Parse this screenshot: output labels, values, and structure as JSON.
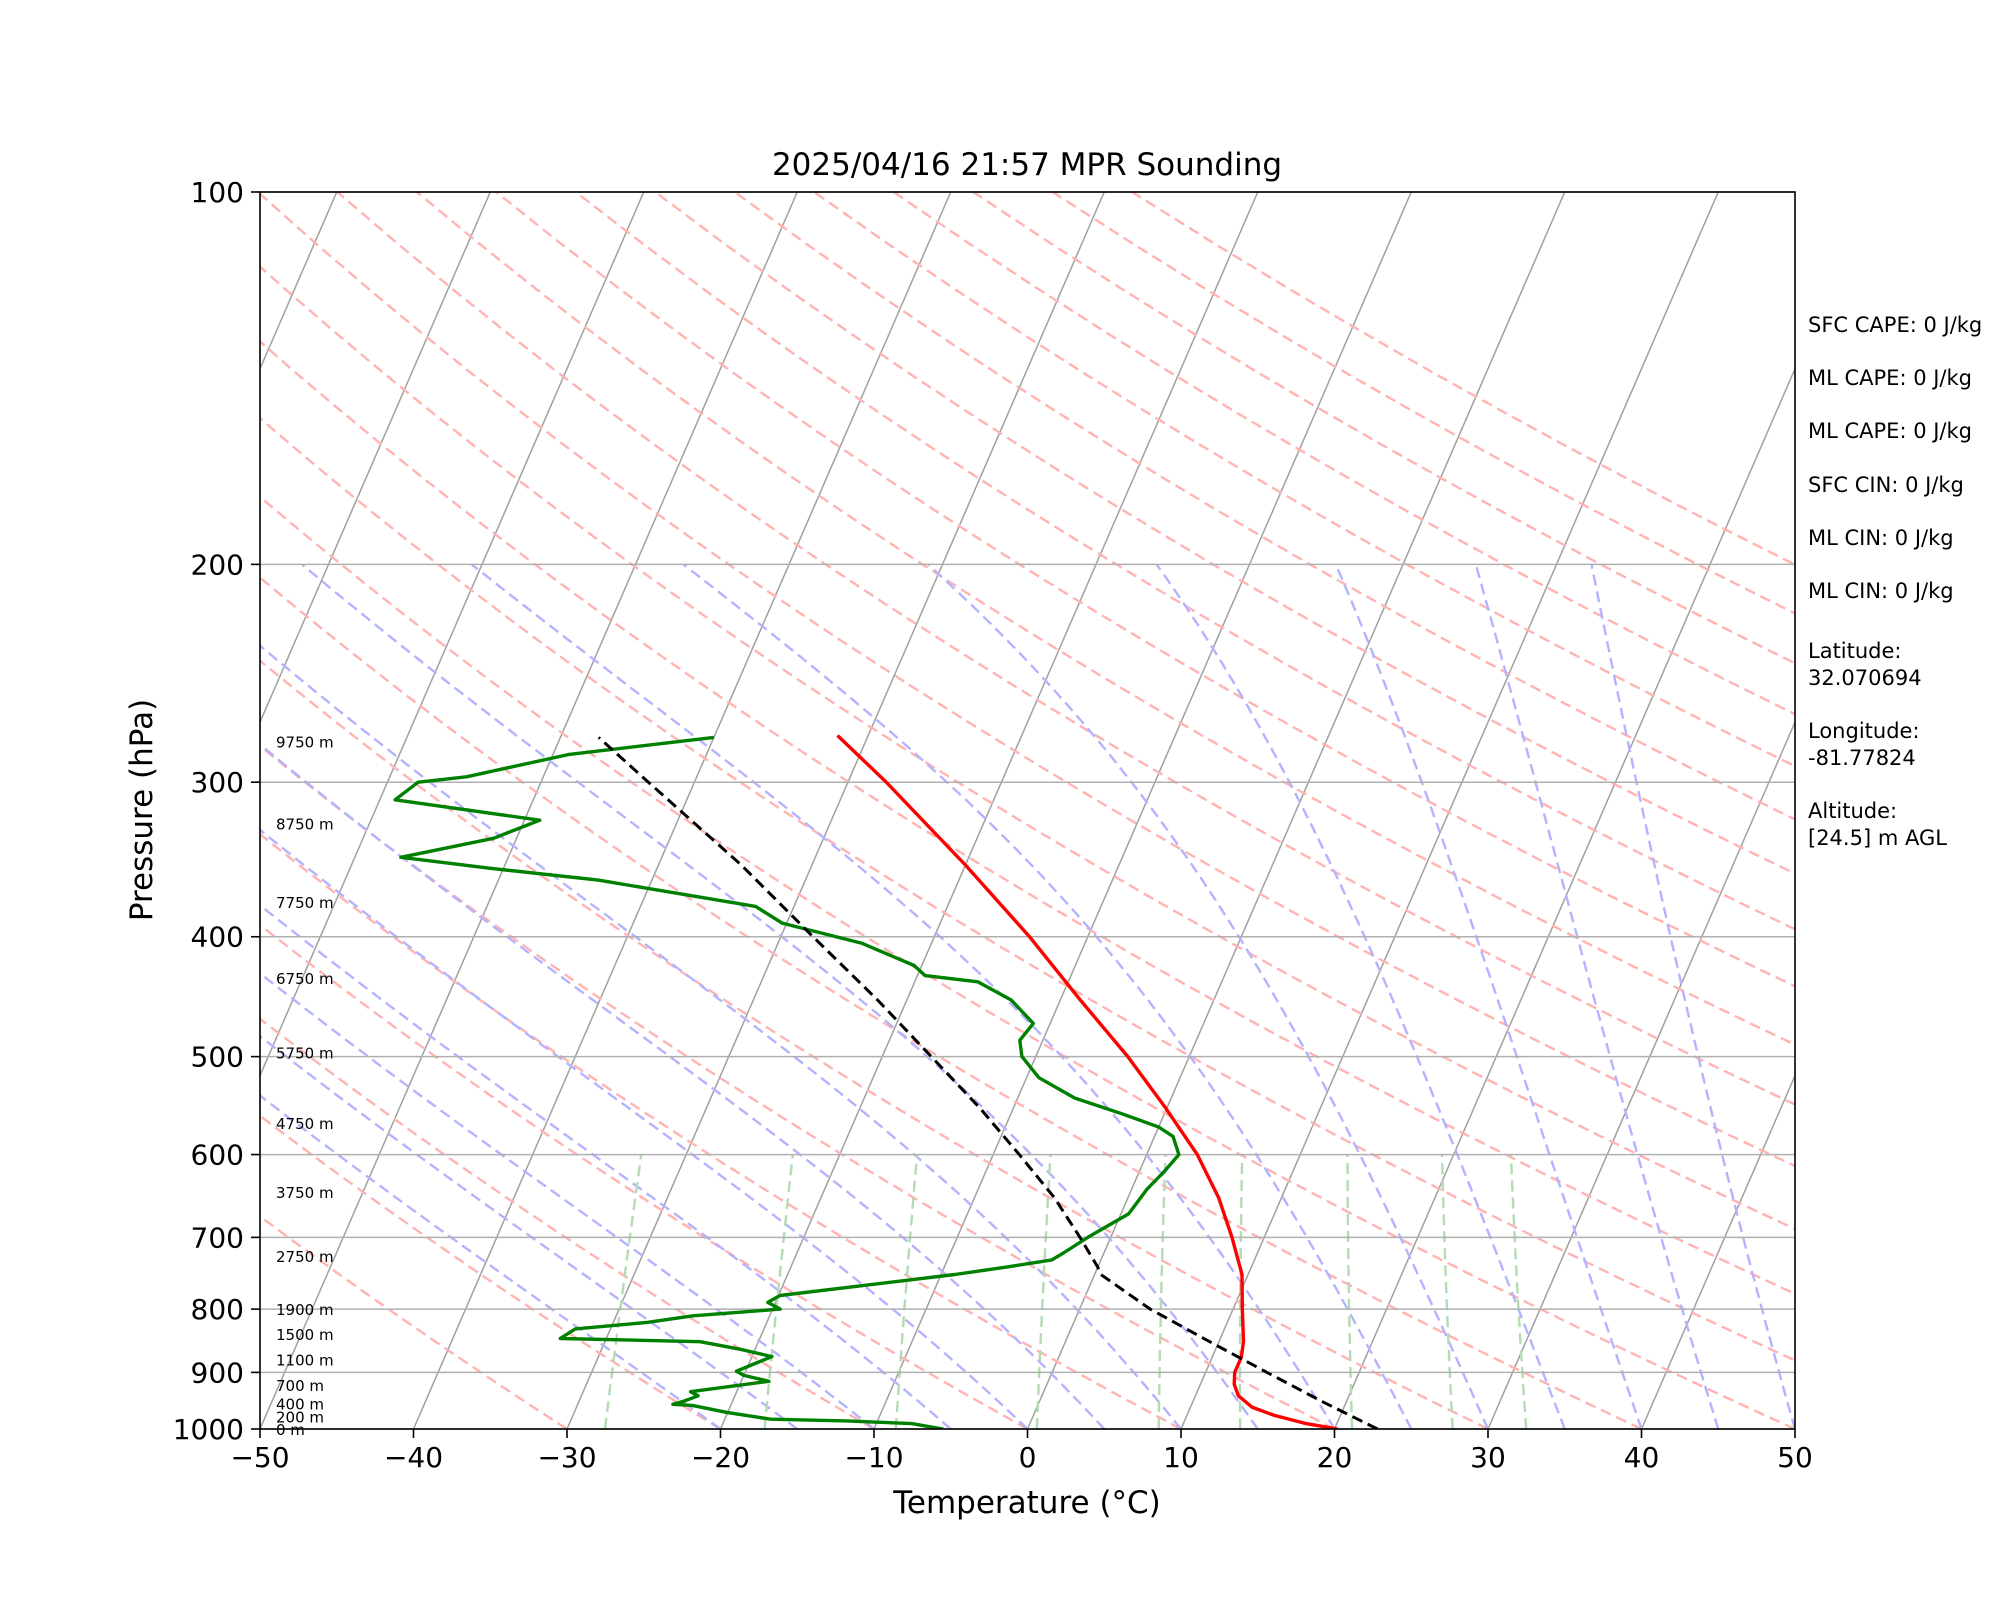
{
  "chart_data": {
    "type": "line",
    "subtype": "skew-t log-p sounding",
    "title": "2025/04/16 21:57 MPR Sounding",
    "xlabel": "Temperature (°C)",
    "ylabel": "Pressure (hPa)",
    "xlim": [
      -50,
      50
    ],
    "ylim": [
      1000,
      100
    ],
    "y_scale": "log",
    "x_ticks": [
      "−50",
      "−40",
      "−30",
      "−20",
      "−10",
      "0",
      "10",
      "20",
      "30",
      "40",
      "50"
    ],
    "y_ticks": [
      "100",
      "200",
      "300",
      "400",
      "500",
      "600",
      "700",
      "800",
      "900",
      "1000"
    ],
    "horizontal_grid": true,
    "series": [
      {
        "name": "",
        "kind": "temperature",
        "color": "#ff0000",
        "points": [
          {
            "p": 1000,
            "t": 20.2
          },
          {
            "p": 990,
            "t": 18.0
          },
          {
            "p": 975,
            "t": 15.7
          },
          {
            "p": 960,
            "t": 14.0
          },
          {
            "p": 940,
            "t": 12.8
          },
          {
            "p": 920,
            "t": 12.2
          },
          {
            "p": 900,
            "t": 11.9
          },
          {
            "p": 875,
            "t": 11.9
          },
          {
            "p": 850,
            "t": 11.6
          },
          {
            "p": 800,
            "t": 10.6
          },
          {
            "p": 750,
            "t": 9.6
          },
          {
            "p": 700,
            "t": 7.9
          },
          {
            "p": 650,
            "t": 5.9
          },
          {
            "p": 600,
            "t": 3.3
          },
          {
            "p": 550,
            "t": -0.1
          },
          {
            "p": 500,
            "t": -4.0
          },
          {
            "p": 450,
            "t": -8.7
          },
          {
            "p": 400,
            "t": -13.8
          },
          {
            "p": 350,
            "t": -20.0
          },
          {
            "p": 300,
            "t": -27.5
          },
          {
            "p": 275,
            "t": -32.0
          }
        ]
      },
      {
        "name": "",
        "kind": "dewpoint",
        "color": "#008000",
        "points": [
          {
            "p": 1000,
            "t": -5.5
          },
          {
            "p": 990,
            "t": -7.7
          },
          {
            "p": 985,
            "t": -12.0
          },
          {
            "p": 982,
            "t": -17.0
          },
          {
            "p": 970,
            "t": -20.0
          },
          {
            "p": 957,
            "t": -22.5
          },
          {
            "p": 955,
            "t": -23.8
          },
          {
            "p": 950,
            "t": -23.2
          },
          {
            "p": 940,
            "t": -22.4
          },
          {
            "p": 933,
            "t": -23.0
          },
          {
            "p": 915,
            "t": -18.2
          },
          {
            "p": 905,
            "t": -20.0
          },
          {
            "p": 898,
            "t": -20.6
          },
          {
            "p": 874,
            "t": -18.7
          },
          {
            "p": 862,
            "t": -21.0
          },
          {
            "p": 850,
            "t": -23.8
          },
          {
            "p": 845,
            "t": -33.0
          },
          {
            "p": 830,
            "t": -32.3
          },
          {
            "p": 820,
            "t": -27.8
          },
          {
            "p": 810,
            "t": -25.0
          },
          {
            "p": 800,
            "t": -19.5
          },
          {
            "p": 790,
            "t": -20.5
          },
          {
            "p": 780,
            "t": -19.9
          },
          {
            "p": 750,
            "t": -9.1
          },
          {
            "p": 740,
            "t": -6.0
          },
          {
            "p": 730,
            "t": -3.2
          },
          {
            "p": 720,
            "t": -2.6
          },
          {
            "p": 700,
            "t": -1.5
          },
          {
            "p": 670,
            "t": 0.5
          },
          {
            "p": 640,
            "t": 1.0
          },
          {
            "p": 620,
            "t": 1.6
          },
          {
            "p": 600,
            "t": 2.1
          },
          {
            "p": 580,
            "t": 1.2
          },
          {
            "p": 570,
            "t": 0.0
          },
          {
            "p": 555,
            "t": -3.0
          },
          {
            "p": 540,
            "t": -6.3
          },
          {
            "p": 520,
            "t": -9.2
          },
          {
            "p": 500,
            "t": -10.9
          },
          {
            "p": 485,
            "t": -11.5
          },
          {
            "p": 470,
            "t": -11.1
          },
          {
            "p": 450,
            "t": -13.2
          },
          {
            "p": 435,
            "t": -15.9
          },
          {
            "p": 430,
            "t": -19.5
          },
          {
            "p": 422,
            "t": -20.5
          },
          {
            "p": 405,
            "t": -24.5
          },
          {
            "p": 390,
            "t": -30.3
          },
          {
            "p": 378,
            "t": -32.5
          },
          {
            "p": 360,
            "t": -43.5
          },
          {
            "p": 352,
            "t": -51.0
          },
          {
            "p": 345,
            "t": -57.0
          },
          {
            "p": 333,
            "t": -51.5
          },
          {
            "p": 322,
            "t": -49.0
          },
          {
            "p": 310,
            "t": -59.0
          },
          {
            "p": 300,
            "t": -58.0
          },
          {
            "p": 297,
            "t": -55.0
          },
          {
            "p": 285,
            "t": -49.0
          },
          {
            "p": 276,
            "t": -40.0
          }
        ]
      },
      {
        "name": "",
        "kind": "parcel path",
        "color": "#000000",
        "dashed": true,
        "points": [
          {
            "p": 1000,
            "t": 22.8
          },
          {
            "p": 950,
            "t": 18.4
          },
          {
            "p": 900,
            "t": 14.0
          },
          {
            "p": 850,
            "t": 9.4
          },
          {
            "p": 800,
            "t": 4.6
          },
          {
            "p": 750,
            "t": 0.4
          },
          {
            "p": 740,
            "t": 0.0
          },
          {
            "p": 700,
            "t": -2.0
          },
          {
            "p": 650,
            "t": -4.8
          },
          {
            "p": 600,
            "t": -8.3
          },
          {
            "p": 550,
            "t": -12.2
          },
          {
            "p": 500,
            "t": -16.8
          },
          {
            "p": 450,
            "t": -21.9
          },
          {
            "p": 400,
            "t": -27.9
          },
          {
            "p": 350,
            "t": -34.6
          },
          {
            "p": 300,
            "t": -43.0
          },
          {
            "p": 276,
            "t": -47.5
          }
        ]
      }
    ],
    "height_labels": [
      {
        "label": "0 m",
        "p": 1000
      },
      {
        "label": "200 m",
        "p": 977
      },
      {
        "label": "400 m",
        "p": 954
      },
      {
        "label": "700 m",
        "p": 921
      },
      {
        "label": "1100 m",
        "p": 879
      },
      {
        "label": "1500 m",
        "p": 838
      },
      {
        "label": "1900 m",
        "p": 800
      },
      {
        "label": "2750 m",
        "p": 725
      },
      {
        "label": "3750 m",
        "p": 643
      },
      {
        "label": "4750 m",
        "p": 566
      },
      {
        "label": "5750 m",
        "p": 496
      },
      {
        "label": "6750 m",
        "p": 432
      },
      {
        "label": "7750 m",
        "p": 375
      },
      {
        "label": "8750 m",
        "p": 324
      },
      {
        "label": "9750 m",
        "p": 278
      }
    ],
    "reference_lines": {
      "isotherms_color": "#a0a0a0",
      "dry_adiabats_color": "#ffb3b3",
      "moist_adiabats_color": "#b3b3ff",
      "mixing_ratio_color": "#b3dcb3"
    }
  },
  "info_panel": [
    "SFC CAPE: 0 J/kg",
    "ML CAPE: 0 J/kg",
    "ML CAPE: 0 J/kg",
    "SFC CIN: 0 J/kg",
    "ML CIN: 0 J/kg",
    "ML CIN: 0 J/kg",
    "Latitude:\n32.070694",
    "Longitude:\n-81.77824",
    "Altitude:\n[24.5] m AGL"
  ]
}
